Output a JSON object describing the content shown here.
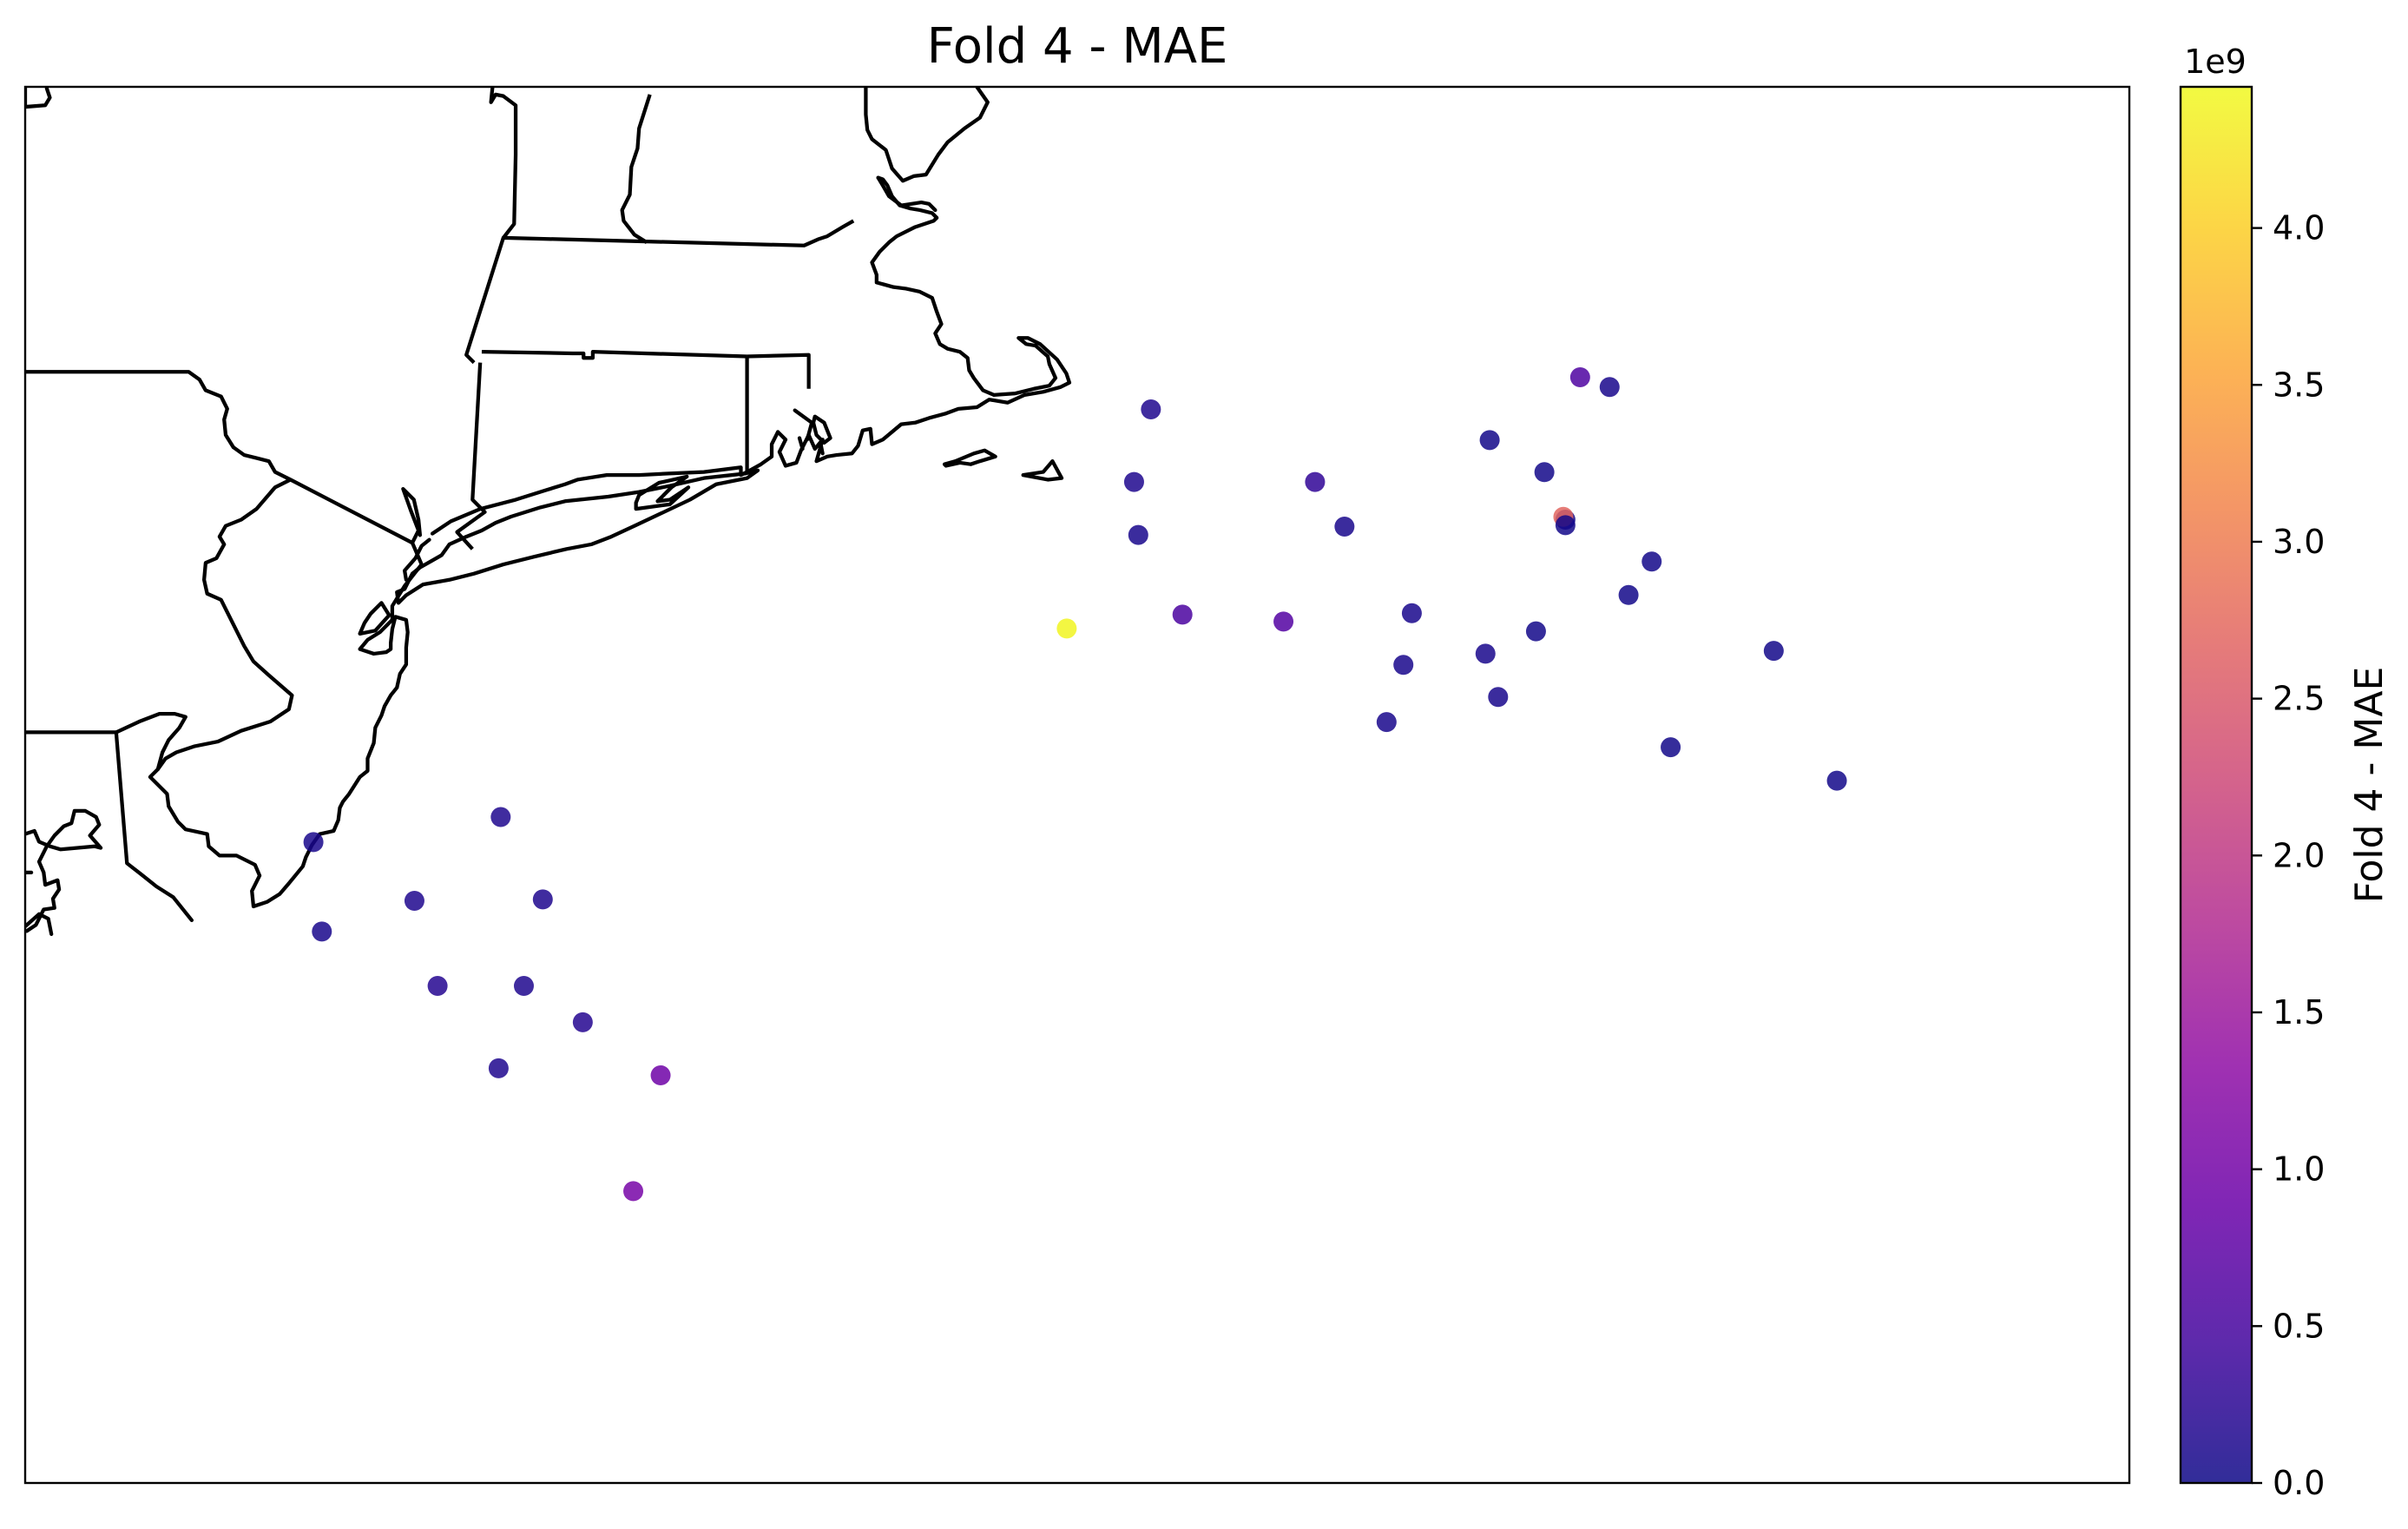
{
  "chart_data": {
    "type": "scatter",
    "title": "Fold 4 - MAE",
    "colorbar": {
      "label": "Fold 4 - MAE",
      "offset_text": "1e9",
      "range": [
        0.0,
        4.45
      ],
      "ticks": [
        "0.0",
        "0.5",
        "1.0",
        "1.5",
        "2.0",
        "2.5",
        "3.0",
        "3.5",
        "4.0"
      ],
      "colormap": "plasma"
    },
    "stations": [
      {
        "x": 0.137,
        "y": 0.459,
        "value": 0.1
      },
      {
        "x": 0.141,
        "y": 0.395,
        "value": 0.1
      },
      {
        "x": 0.185,
        "y": 0.417,
        "value": 0.15
      },
      {
        "x": 0.226,
        "y": 0.477,
        "value": 0.15
      },
      {
        "x": 0.246,
        "y": 0.418,
        "value": 0.15
      },
      {
        "x": 0.196,
        "y": 0.356,
        "value": 0.2
      },
      {
        "x": 0.237,
        "y": 0.356,
        "value": 0.15
      },
      {
        "x": 0.265,
        "y": 0.33,
        "value": 0.2
      },
      {
        "x": 0.225,
        "y": 0.297,
        "value": 0.15
      },
      {
        "x": 0.302,
        "y": 0.292,
        "value": 0.95
      },
      {
        "x": 0.289,
        "y": 0.209,
        "value": 1.05
      },
      {
        "x": 0.495,
        "y": 0.612,
        "value": 4.4
      },
      {
        "x": 0.55,
        "y": 0.622,
        "value": 0.55
      },
      {
        "x": 0.598,
        "y": 0.617,
        "value": 0.65
      },
      {
        "x": 0.535,
        "y": 0.769,
        "value": 0.15
      },
      {
        "x": 0.527,
        "y": 0.717,
        "value": 0.15
      },
      {
        "x": 0.529,
        "y": 0.679,
        "value": 0.1
      },
      {
        "x": 0.613,
        "y": 0.717,
        "value": 0.3
      },
      {
        "x": 0.627,
        "y": 0.685,
        "value": 0.1
      },
      {
        "x": 0.659,
        "y": 0.623,
        "value": 0.1
      },
      {
        "x": 0.655,
        "y": 0.586,
        "value": 0.1
      },
      {
        "x": 0.647,
        "y": 0.545,
        "value": 0.1
      },
      {
        "x": 0.694,
        "y": 0.594,
        "value": 0.1
      },
      {
        "x": 0.7,
        "y": 0.563,
        "value": 0.1
      },
      {
        "x": 0.718,
        "y": 0.61,
        "value": 0.05
      },
      {
        "x": 0.696,
        "y": 0.747,
        "value": 0.05
      },
      {
        "x": 0.722,
        "y": 0.724,
        "value": 0.05
      },
      {
        "x": 0.732,
        "y": 0.69,
        "value": 0.05
      },
      {
        "x": 0.731,
        "y": 0.692,
        "value": 2.7
      },
      {
        "x": 0.732,
        "y": 0.686,
        "value": 0.05
      },
      {
        "x": 0.739,
        "y": 0.792,
        "value": 0.6
      },
      {
        "x": 0.753,
        "y": 0.785,
        "value": 0.1
      },
      {
        "x": 0.762,
        "y": 0.636,
        "value": 0.05
      },
      {
        "x": 0.773,
        "y": 0.66,
        "value": 0.05
      },
      {
        "x": 0.782,
        "y": 0.527,
        "value": 0.05
      },
      {
        "x": 0.831,
        "y": 0.596,
        "value": 0.05
      },
      {
        "x": 0.861,
        "y": 0.503,
        "value": 0.05
      }
    ]
  }
}
